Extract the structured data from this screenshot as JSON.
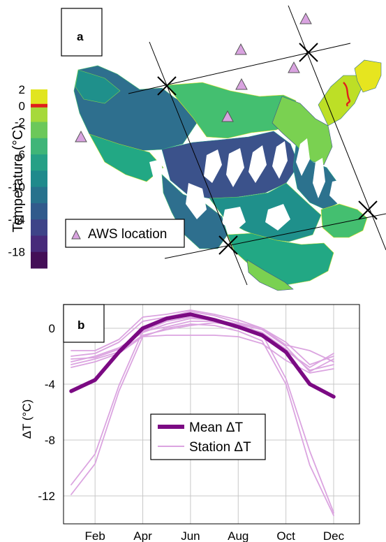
{
  "panel_a": {
    "label": "a",
    "colorbar": {
      "label": "Temperature (°C)",
      "ticks": [
        "2",
        "0",
        "-2",
        "-6",
        "-10",
        "-14",
        "-18"
      ],
      "zero_tick_color": "#e0201b",
      "colors": [
        "#e1e51f",
        "#a6d93a",
        "#6cc85a",
        "#3fb578",
        "#26a086",
        "#1f8a8c",
        "#27728d",
        "#315a8c",
        "#3e4488",
        "#472a7a",
        "#440f57"
      ]
    },
    "legend": {
      "label": "AWS location",
      "marker_color": "#d9a3e0"
    },
    "aws_marker_count": 9,
    "glacier_palette": [
      "#2e6f8e",
      "#1f908b",
      "#22a884",
      "#44bf70",
      "#7ad151",
      "#bddf26",
      "#e6e51f",
      "#3b528b",
      "#2c728e"
    ],
    "terminus_line_color": "#e0201b"
  },
  "panel_b": {
    "label": "b",
    "legend": {
      "mean_label": "Mean ΔT",
      "station_label": "Station ΔT"
    }
  },
  "chart_data": {
    "type": "line",
    "title": "",
    "xlabel": "",
    "ylabel": "ΔT (°C)",
    "categories": [
      "Jan",
      "Feb",
      "Mar",
      "Apr",
      "May",
      "Jun",
      "Jul",
      "Aug",
      "Sep",
      "Oct",
      "Nov",
      "Dec"
    ],
    "x_tick_labels": [
      "Feb",
      "Apr",
      "Jun",
      "Aug",
      "Oct",
      "Dec"
    ],
    "y_tick_labels": [
      "0",
      "-4",
      "-8",
      "-12"
    ],
    "ylim": [
      -14,
      1.7
    ],
    "grid": true,
    "legend_position": "center",
    "series": [
      {
        "name": "Mean ΔT",
        "color": "#7b0a83",
        "values": [
          -4.5,
          -3.7,
          -1.7,
          0.0,
          0.7,
          1.0,
          0.6,
          0.1,
          -0.5,
          -1.7,
          -4.0,
          -4.9
        ]
      },
      {
        "name": "Station ΔT",
        "color": "#dba4e0",
        "values": [
          -1.6,
          -1.6,
          -0.8,
          0.8,
          1.0,
          1.3,
          1.0,
          0.6,
          0.0,
          -1.2,
          -1.6,
          -2.4
        ]
      },
      {
        "name": "Station ΔT",
        "color": "#dba4e0",
        "values": [
          -2.0,
          -1.8,
          -1.0,
          0.5,
          0.8,
          1.2,
          0.9,
          0.4,
          0.0,
          -1.0,
          -2.6,
          -2.0
        ]
      },
      {
        "name": "Station ΔT",
        "color": "#dba4e0",
        "values": [
          -2.4,
          -2.0,
          -1.4,
          -0.3,
          0.3,
          0.7,
          0.6,
          0.3,
          -0.1,
          -1.3,
          -3.1,
          -2.2
        ]
      },
      {
        "name": "Station ΔT",
        "color": "#dba4e0",
        "values": [
          -2.6,
          -2.2,
          -1.7,
          -0.5,
          -0.1,
          0.2,
          0.4,
          0.2,
          -0.3,
          -1.5,
          -3.0,
          -2.6
        ]
      },
      {
        "name": "Station ΔT",
        "color": "#dba4e0",
        "values": [
          -2.2,
          -2.1,
          -1.5,
          -0.2,
          0.1,
          0.5,
          0.5,
          0.2,
          -0.4,
          -1.6,
          -2.8,
          -1.8
        ]
      },
      {
        "name": "Station ΔT",
        "color": "#dba4e0",
        "values": [
          -2.8,
          -2.4,
          -1.8,
          -0.6,
          -0.5,
          -0.5,
          -0.5,
          -0.6,
          -1.1,
          -2.3,
          -3.2,
          -2.9
        ]
      },
      {
        "name": "Station ΔT",
        "color": "#dba4e0",
        "values": [
          -11.2,
          -9.0,
          -4.1,
          -0.2,
          0.5,
          0.8,
          0.6,
          0.3,
          -0.4,
          -3.6,
          -8.8,
          -13.2
        ]
      },
      {
        "name": "Station ΔT",
        "color": "#dba4e0",
        "values": [
          -11.9,
          -9.7,
          -4.5,
          -0.6,
          0.0,
          0.3,
          0.2,
          -0.2,
          -0.9,
          -4.0,
          -9.8,
          -13.4
        ]
      }
    ]
  }
}
